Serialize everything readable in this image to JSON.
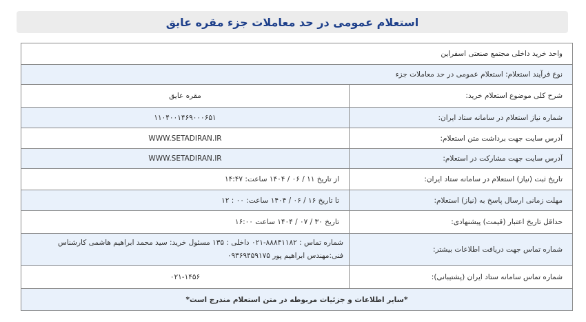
{
  "title": "استعلام عمومی در حد معاملات جزء مقره عایق",
  "unit": "واحد خرید داخلی مجتمع صنعتی اسفراین",
  "process_type": "نوع فرآیند استعلام:  استعلام عمومی در حد معاملات جزء",
  "rows": [
    {
      "label": "شرح کلی موضوع استعلام خرید:",
      "value": "مقره عایق"
    },
    {
      "label": "شماره نیاز استعلام در سامانه ستاد ایران:",
      "value": "۱۱۰۴۰۰۱۴۶۹۰۰۰۶۵۱"
    },
    {
      "label": "آدرس سایت جهت برداشت متن استعلام:",
      "value": "WWW.SETADIRAN.IR"
    },
    {
      "label": "آدرس سایت جهت مشارکت در استعلام:",
      "value": "WWW.SETADIRAN.IR"
    },
    {
      "label": "تاریخ ثبت (نیاز) استعلام در سامانه ستاد ایران:",
      "value": "از تاریخ   ۱۱ / ۰۶ / ۱۴۰۴   ساعت: ۱۴:۴۷"
    },
    {
      "label": "مهلت زمانی ارسال پاسخ به (نیاز) استعلام:",
      "value": "تا تاریخ  ۱۶ / ۰۶ / ۱۴۰۴   ساعت: ۰۰ : ۱۲"
    },
    {
      "label": "حداقل تاریخ اعتبار (قیمت) پیشنهادی:",
      "value": "تاریخ      ۳۰ / ۰۷ / ۱۴۰۴   ساعت ۱۶:۰۰"
    },
    {
      "label": "شماره تماس جهت دریافت اطلاعات بیشتر:",
      "value": "شماره تماس : ۸۸۸۴۱۱۸۲-۰۲۱  داخلی : ۱۳۵     مسئول خرید: سید محمد ابراهیم هاشمی کارشناس فنی:مهندس ابراهیم پور ۰۹۳۶۹۴۵۹۱۷۵"
    },
    {
      "label": "شماره تماس سامانه ستاد ایران (پشتیبانی):",
      "value": "۰۲۱-۱۴۵۶"
    }
  ],
  "footer_note": "*سایر اطلاعات و جزئیات مربوطه در متن استعلام مندرج است*"
}
